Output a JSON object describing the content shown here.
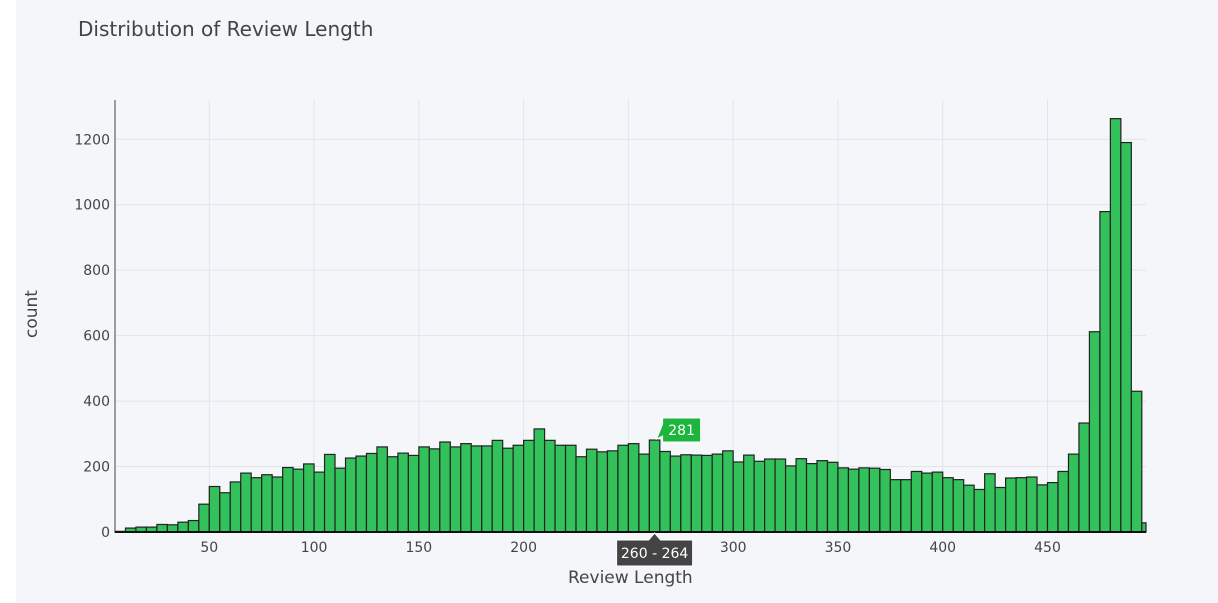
{
  "chart_data": {
    "type": "bar",
    "title": "Distribution of Review Length",
    "xlabel": "Review Length",
    "ylabel": "count",
    "bin_width": 5,
    "x_start": 5,
    "xlim": [
      5,
      497
    ],
    "ylim": [
      0,
      1320
    ],
    "xticks": [
      50,
      100,
      150,
      200,
      250,
      300,
      350,
      400,
      450
    ],
    "yticks": [
      0,
      200,
      400,
      600,
      800,
      1000,
      1200
    ],
    "values": [
      2,
      12,
      15,
      15,
      23,
      22,
      30,
      35,
      85,
      139,
      120,
      153,
      180,
      166,
      175,
      168,
      197,
      192,
      208,
      183,
      237,
      195,
      226,
      232,
      240,
      260,
      230,
      241,
      234,
      260,
      254,
      275,
      260,
      270,
      263,
      263,
      280,
      256,
      265,
      280,
      315,
      280,
      265,
      265,
      230,
      253,
      245,
      248,
      265,
      270,
      238,
      281,
      246,
      232,
      236,
      235,
      234,
      238,
      248,
      214,
      235,
      216,
      223,
      223,
      202,
      224,
      209,
      218,
      213,
      196,
      192,
      196,
      195,
      191,
      160,
      160,
      185,
      180,
      183,
      166,
      160,
      143,
      130,
      178,
      136,
      165,
      166,
      168,
      144,
      151,
      185,
      238,
      333,
      612,
      979,
      1263,
      1190,
      430,
      28
    ],
    "bar_color": "#32c15a",
    "bar_edge_color": "#222222",
    "hover": {
      "x_label": "260 - 264",
      "y_label": "281",
      "y_label_color": "#1db53e",
      "x_label_color": "#444444"
    },
    "grid": true
  }
}
